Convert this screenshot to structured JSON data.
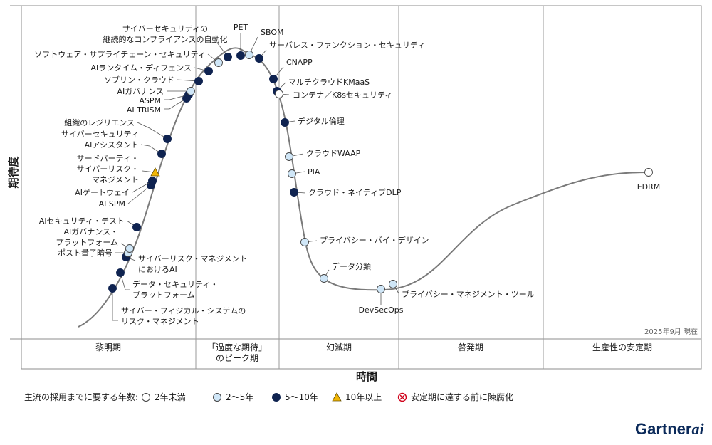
{
  "title": "",
  "axes": {
    "y_title": "期待度",
    "x_title": "時間"
  },
  "as_of": "2025年9月 現在",
  "phases": [
    {
      "label": "黎明期"
    },
    {
      "label": "「過度な期待」のピーク期",
      "lines": [
        "「過度な期待」",
        "のピーク期"
      ]
    },
    {
      "label": "幻滅期"
    },
    {
      "label": "啓発期"
    },
    {
      "label": "生産性の安定期"
    }
  ],
  "legend": {
    "title": "主流の採用までに要する年数:",
    "items": [
      {
        "label": "2年未満",
        "symbol": "circle-white"
      },
      {
        "label": "2～5年",
        "symbol": "circle-light"
      },
      {
        "label": "5～10年",
        "symbol": "circle-dark"
      },
      {
        "label": "10年以上",
        "symbol": "triangle"
      },
      {
        "label": "安定期に達する前に陳腐化",
        "symbol": "x-circle"
      }
    ]
  },
  "colors": {
    "white": "#ffffff",
    "light": "#cfe6f7",
    "dark": "#0f2350",
    "triangle": "#f2b705",
    "obsolete": "#d0021b",
    "curve": "#7a7a7a",
    "grid": "#9a9a9a"
  },
  "chart_data": {
    "type": "diagram",
    "technologies": [
      {
        "name": "サイバー・フィジカル・システムのリスク・マネジメント",
        "lines": [
          "サイバー・フィジカル・システムの",
          "リスク・マネジメント"
        ],
        "category": "5～10年"
      },
      {
        "name": "データ・セキュリティ・プラットフォーム",
        "lines": [
          "データ・セキュリティ・",
          "プラットフォーム"
        ],
        "category": "5～10年"
      },
      {
        "name": "サイバーリスク・マネジメントにおけるAI",
        "lines": [
          "サイバーリスク・マネジメント",
          "におけるAI"
        ],
        "category": "5～10年"
      },
      {
        "name": "ポスト量子暗号",
        "lines": [
          "ポスト量子暗号"
        ],
        "category": "2～5年"
      },
      {
        "name": "AIガバナンス・プラットフォーム",
        "lines": [
          "AIガバナンス・",
          "プラットフォーム"
        ],
        "category": "2～5年"
      },
      {
        "name": "AIセキュリティ・テスト",
        "lines": [
          "AIセキュリティ・テスト"
        ],
        "category": "5～10年"
      },
      {
        "name": "AI SPM",
        "lines": [
          "AI SPM"
        ],
        "category": "5～10年"
      },
      {
        "name": "AIゲートウェイ",
        "lines": [
          "AIゲートウェイ"
        ],
        "category": "5～10年"
      },
      {
        "name": "サードパーティ・サイバーリスク・マネジメント",
        "lines": [
          "サードパーティ・",
          "サイバーリスク・",
          "マネジメント"
        ],
        "category": "10年以上"
      },
      {
        "name": "サイバーセキュリティAIアシスタント",
        "lines": [
          "サイバーセキュリティ",
          "AIアシスタント"
        ],
        "category": "5～10年"
      },
      {
        "name": "組織のレジリエンス",
        "lines": [
          "組織のレジリエンス"
        ],
        "category": "5～10年"
      },
      {
        "name": "AI TRiSM",
        "lines": [
          "AI TRiSM"
        ],
        "category": "5～10年"
      },
      {
        "name": "ASPM",
        "lines": [
          "ASPM"
        ],
        "category": "5～10年"
      },
      {
        "name": "AIガバナンス",
        "lines": [
          "AIガバナンス"
        ],
        "category": "2～5年"
      },
      {
        "name": "ソブリン・クラウド",
        "lines": [
          "ソブリン・クラウド"
        ],
        "category": "5～10年"
      },
      {
        "name": "AIランタイム・ディフェンス",
        "lines": [
          "AIランタイム・ディフェンス"
        ],
        "category": "5～10年"
      },
      {
        "name": "ソフトウェア・サプライチェーン・セキュリティ",
        "lines": [
          "ソフトウェア・サプライチェーン・セキュリティ"
        ],
        "category": "2～5年"
      },
      {
        "name": "サイバーセキュリティの継続的なコンプライアンスの自動化",
        "lines": [
          "サイバーセキュリティの",
          "継続的なコンプライアンスの自動化"
        ],
        "category": "5～10年"
      },
      {
        "name": "PET",
        "lines": [
          "PET"
        ],
        "category": "5～10年"
      },
      {
        "name": "SBOM",
        "lines": [
          "SBOM"
        ],
        "category": "2～5年"
      },
      {
        "name": "サーバレス・ファンクション・セキュリティ",
        "lines": [
          "サーバレス・ファンクション・セキュリティ"
        ],
        "category": "5～10年"
      },
      {
        "name": "CNAPP",
        "lines": [
          "CNAPP"
        ],
        "category": "5～10年"
      },
      {
        "name": "マルチクラウドKMaaS",
        "lines": [
          "マルチクラウドKMaaS"
        ],
        "category": "5～10年"
      },
      {
        "name": "コンテナ／K8sセキュリティ",
        "lines": [
          "コンテナ／K8sセキュリティ"
        ],
        "category": "2年未満"
      },
      {
        "name": "デジタル倫理",
        "lines": [
          "デジタル倫理"
        ],
        "category": "5～10年"
      },
      {
        "name": "クラウドWAAP",
        "lines": [
          "クラウドWAAP"
        ],
        "category": "2～5年"
      },
      {
        "name": "PIA",
        "lines": [
          "PIA"
        ],
        "category": "2～5年"
      },
      {
        "name": "クラウド・ネイティブDLP",
        "lines": [
          "クラウド・ネイティブDLP"
        ],
        "category": "5～10年"
      },
      {
        "name": "プライバシー・バイ・デザイン",
        "lines": [
          "プライバシー・バイ・デザイン"
        ],
        "category": "2～5年"
      },
      {
        "name": "データ分類",
        "lines": [
          "データ分類"
        ],
        "category": "2～5年"
      },
      {
        "name": "DevSecOps",
        "lines": [
          "DevSecOps"
        ],
        "category": "2～5年"
      },
      {
        "name": "プライバシー・マネジメント・ツール",
        "lines": [
          "プライバシー・マネジメント・ツール"
        ],
        "category": "2～5年"
      },
      {
        "name": "EDRM",
        "lines": [
          "EDRM"
        ],
        "category": "2年未満"
      }
    ]
  },
  "brand": {
    "name": "Gartner",
    "suffix": "ai"
  }
}
